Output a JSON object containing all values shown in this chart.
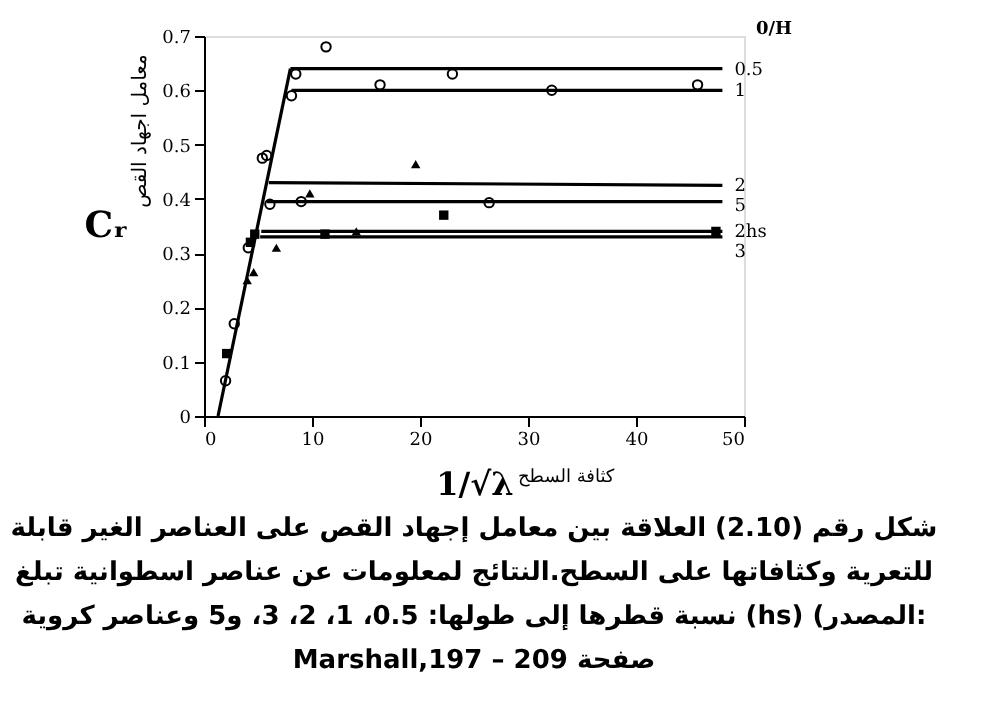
{
  "chart_data": {
    "type": "line",
    "ylabel": "Cᵣ",
    "xlabel": "1/√λ",
    "legend_title": "0/H",
    "xlim": [
      0,
      50
    ],
    "ylim": [
      0,
      0.7
    ],
    "xticks": [
      0,
      10,
      20,
      30,
      40,
      50
    ],
    "yticks": [
      0,
      0.1,
      0.2,
      0.3,
      0.4,
      0.5,
      0.6,
      0.7
    ],
    "legend": false,
    "grid": false,
    "series": [
      {
        "type": "line",
        "color": "#000000",
        "x": [
          1.3,
          8
        ],
        "values": [
          0,
          0.64
        ]
      },
      {
        "type": "line",
        "name": "0.5",
        "color": "#000000",
        "x": [
          8,
          48
        ],
        "values": [
          0.64,
          0.64
        ]
      },
      {
        "type": "line",
        "name": "1",
        "color": "#000000",
        "x": [
          8.1,
          48
        ],
        "values": [
          0.6,
          0.6
        ]
      },
      {
        "type": "line",
        "name": "2",
        "color": "#000000",
        "x": [
          6,
          48
        ],
        "values": [
          0.43,
          0.425
        ]
      },
      {
        "type": "line",
        "name": "5",
        "color": "#000000",
        "x": [
          5.8,
          48
        ],
        "values": [
          0.395,
          0.395
        ]
      },
      {
        "type": "line",
        "name": "2hs",
        "color": "#000000",
        "x": [
          5.3,
          48
        ],
        "values": [
          0.34,
          0.34
        ]
      },
      {
        "type": "line",
        "name": "3",
        "color": "#000000",
        "x": [
          5.2,
          48
        ],
        "values": [
          0.33,
          0.33
        ]
      },
      {
        "type": "scatter",
        "marker": "circle",
        "color": "#000000",
        "x": [
          11.3,
          8.5,
          16.3,
          23,
          32.2,
          45.7,
          8.1,
          5.4,
          5.8,
          4.1,
          2.8,
          2.0
        ],
        "values": [
          0.68,
          0.63,
          0.61,
          0.63,
          0.6,
          0.61,
          0.59,
          0.475,
          0.48,
          0.31,
          0.17,
          0.065
        ]
      },
      {
        "type": "scatter",
        "marker": "square",
        "color": "#000000",
        "x": [
          2.1,
          4.7,
          4.3,
          11.2,
          22.2,
          47.4
        ],
        "values": [
          0.115,
          0.335,
          0.32,
          0.335,
          0.37,
          0.34
        ]
      },
      {
        "type": "scatter",
        "marker": "circle",
        "color": "#000000",
        "x": [
          6.1,
          9.0,
          26.4
        ],
        "values": [
          0.39,
          0.395,
          0.393
        ]
      },
      {
        "type": "scatter",
        "marker": "triangle",
        "color": "#000000",
        "x": [
          19.6,
          9.8,
          6.7,
          4.6,
          4.0,
          14.1
        ],
        "values": [
          0.464,
          0.41,
          0.31,
          0.265,
          0.25,
          0.34
        ]
      }
    ],
    "annotations": [
      "معامل اجهاد القص",
      "كثافة السطح",
      "شكل رقم (2.10) العلاقة بين معامل إجهاد القص على العناصر الغير قابلة",
      "للتعرية وكثافاتها على السطح.النتائج لمعلومات عن عناصر اسطوانية تبلغ",
      "نسبة قطرها إلى طولها: 0.5، 1، 2، 3، و5 وعناصر كروية (hs) (المصدر:",
      "Marshall,197 – صفحة 209"
    ]
  }
}
